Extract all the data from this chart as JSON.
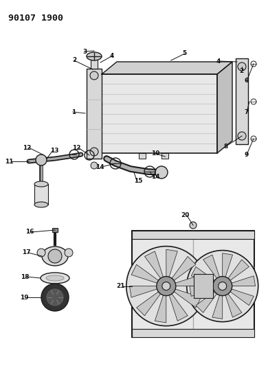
{
  "title": "90107 1900",
  "bg_color": "#ffffff",
  "line_color": "#1a1a1a",
  "label_color": "#111111",
  "title_fontsize": 9.5,
  "label_fontsize": 6.5,
  "figsize": [
    3.9,
    5.33
  ],
  "dpi": 100
}
